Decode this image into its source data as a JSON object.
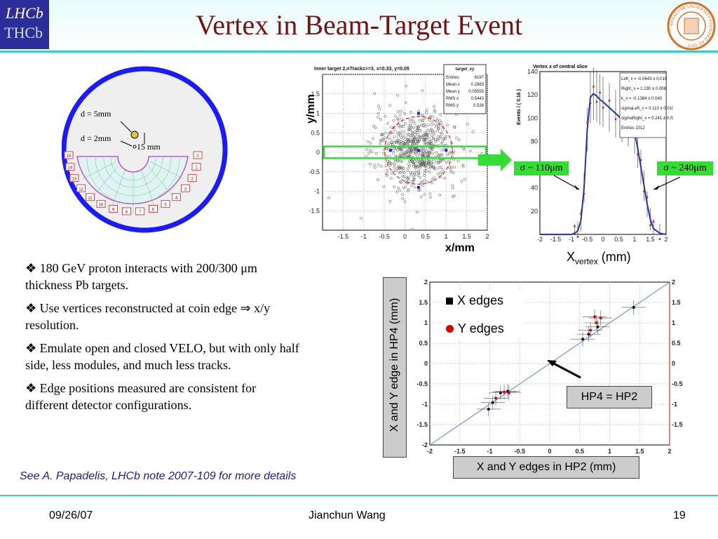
{
  "slide": {
    "title": "Vertex in Beam-Target Event",
    "footer_date": "09/26/07",
    "footer_author": "Jianchun Wang",
    "footer_page": "19",
    "note": "See A. Papadelis, LHCb note 2007-109 for more details",
    "colors": {
      "title": "#7a1010",
      "accent_rule": "#33cccc",
      "detector_ring": "#1a1aff",
      "histogram_line": "#2233cc"
    }
  },
  "logos": {
    "lhcb_top": "LHCb",
    "lhcb_bottom": "THCb",
    "seal_text": "SYRACUSE UNIVERSITY FOUNDED AD 1870"
  },
  "detector": {
    "label_5mm": "d = 5mm",
    "label_2mm": "d = 2mm",
    "label_15mm": "15 mm",
    "module_numbers": [
      "15",
      "14",
      "13",
      "12",
      "11",
      "10",
      "9",
      "8",
      "7",
      "6",
      "5",
      "4",
      "3",
      "2",
      "1",
      "0"
    ]
  },
  "bullets": [
    {
      "icon": "diamond-bullet-icon",
      "text": "180 GeV proton interacts with 200/300 μm thickness Pb targets."
    },
    {
      "icon": "diamond-bullet-icon",
      "text": "Use vertices reconstructed at coin edge ⇒ x/y resolution."
    },
    {
      "icon": "diamond-bullet-icon",
      "text": "Emulate open and closed VELO, but with only half side, less modules, and much less tracks."
    },
    {
      "icon": "diamond-bullet-icon",
      "text": "Edge positions measured are consistent for different detector configurations."
    }
  ],
  "annotations": {
    "sigma_left": "σ ~ 110μm",
    "sigma_right": "σ ~ 240μm",
    "xvertex_main": "X",
    "xvertex_sub": "vertex",
    "xvertex_unit": " (mm)",
    "hp4_hp2": "HP4 = HP2",
    "hp_xlabel": "X and Y edges in HP2 (mm)",
    "hp_ylabel": "X and Y edge in HP4 (mm)"
  },
  "chart_data": [
    {
      "type": "scatter",
      "title": "Inner target 2,nTracks>=3, x=0.33, y=0.05",
      "xlabel": "x/mm",
      "ylabel": "y/mm",
      "xlim": [
        -2,
        2
      ],
      "ylim": [
        -2,
        2
      ],
      "xticks": [
        "-1.5",
        "-1",
        "-0.5",
        "0",
        "0.5",
        "1",
        "1.5",
        "2"
      ],
      "yticks": [
        "1.5",
        "1",
        "0.5",
        "0",
        "-0.5",
        "-1",
        "-1.5"
      ],
      "stats_title": "target_xy",
      "stats": [
        {
          "label": "Entries",
          "value": "6197"
        },
        {
          "label": "Mean x",
          "value": "0.2883"
        },
        {
          "label": "Mean y",
          "value": "0.05555"
        },
        {
          "label": "RMS x",
          "value": "0.5443"
        },
        {
          "label": "RMS y",
          "value": "0.526"
        }
      ],
      "grid": true
    },
    {
      "type": "line",
      "title": "Vertex x of central slice",
      "ylabel": "Events / ( 0.16 )",
      "xlim": [
        -2,
        2
      ],
      "ylim": [
        0,
        140
      ],
      "xticks": [
        "-2",
        "-1.5",
        "-1",
        "-0.5",
        "0",
        "0.5",
        "1",
        "1.5",
        "2"
      ],
      "yticks": [
        "140",
        "120",
        "100",
        "80",
        "60",
        "40",
        "20"
      ],
      "stats": [
        {
          "label": "Left_x",
          "value": "= -0.0643 ± 0.010"
        },
        {
          "label": "Right_x",
          "value": "= 1.190 ± 0.008"
        },
        {
          "label": "k_x",
          "value": "= -0.1384 ± 0.040"
        },
        {
          "label": "sigmaLeft_x",
          "value": "= 0.113 ± 0.010"
        },
        {
          "label": "sigmaRight_x",
          "value": "= 0.241 ± 0.033"
        },
        {
          "label": "Entries",
          "value": "1012"
        }
      ],
      "x": [
        -2,
        -1.5,
        -1,
        -0.9,
        -0.8,
        -0.7,
        -0.6,
        -0.5,
        -0.4,
        -0.3,
        -0.2,
        -0.1,
        0,
        0.2,
        0.4,
        0.6,
        0.8,
        1.0,
        1.1,
        1.2,
        1.3,
        1.4,
        1.5,
        1.6,
        1.8,
        2
      ],
      "y": [
        0,
        0,
        0,
        1,
        3,
        12,
        40,
        90,
        118,
        121,
        119,
        116,
        114,
        109,
        104,
        99,
        95,
        88,
        74,
        58,
        42,
        26,
        13,
        5,
        1,
        0
      ],
      "grid": false
    },
    {
      "type": "scatter",
      "xlabel": "X and Y edges in HP2 (mm)",
      "ylabel": "X and Y edge in HP4 (mm)",
      "xlim": [
        -2,
        2
      ],
      "ylim": [
        -2,
        2
      ],
      "xticks": [
        "-2",
        "-1.5",
        "-1",
        "-0.5",
        "0",
        "0.5",
        "1",
        "1.5",
        "2"
      ],
      "yticks": [
        "2",
        "1.5",
        "1",
        "0.5",
        "0",
        "-0.5",
        "-1",
        "-1.5",
        "-2"
      ],
      "right_ticks": [
        "2",
        "1.5",
        "1",
        "0.5",
        "0",
        "-0.5",
        "-1",
        "-1.5"
      ],
      "series": [
        {
          "name": "X edges",
          "color": "#000000",
          "points": [
            [
              -1.02,
              -1.12
            ],
            [
              -0.95,
              -0.96
            ],
            [
              -0.82,
              -0.72
            ],
            [
              -0.7,
              -0.68
            ],
            [
              0.55,
              0.6
            ],
            [
              0.65,
              0.72
            ],
            [
              0.8,
              0.9
            ],
            [
              1.4,
              1.38
            ]
          ]
        },
        {
          "name": "Y edges",
          "color": "#dd0000",
          "points": [
            [
              -0.9,
              -0.85
            ],
            [
              -0.76,
              -0.7
            ],
            [
              -0.68,
              -0.72
            ],
            [
              0.68,
              0.82
            ],
            [
              0.78,
              1.0
            ],
            [
              0.85,
              1.12
            ],
            [
              0.75,
              1.15
            ]
          ]
        }
      ],
      "reference_line": "HP4 = HP2",
      "grid": true
    }
  ]
}
